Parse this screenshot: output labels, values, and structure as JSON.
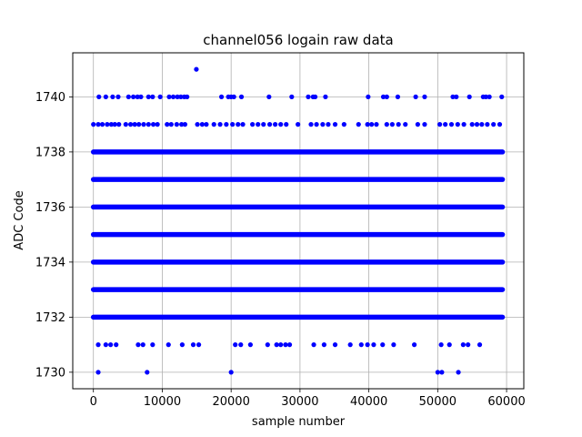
{
  "chart_data": {
    "type": "scatter",
    "title": "channel056 logain raw data",
    "xlabel": "sample number",
    "ylabel": "ADC Code",
    "xlim": [
      -3000,
      62500
    ],
    "ylim": [
      1729.4,
      1741.6
    ],
    "xticks": [
      0,
      10000,
      20000,
      30000,
      40000,
      50000,
      60000
    ],
    "yticks": [
      1730,
      1732,
      1734,
      1736,
      1738,
      1740
    ],
    "grid": true,
    "marker_color": "#0000ff",
    "series": [
      {
        "dense_levels": [
          {
            "y": 1738,
            "x_range": [
              0,
              59400
            ]
          },
          {
            "y": 1737,
            "x_range": [
              0,
              59400
            ]
          },
          {
            "y": 1736,
            "x_range": [
              0,
              59400
            ]
          },
          {
            "y": 1735,
            "x_range": [
              0,
              59400
            ]
          },
          {
            "y": 1734,
            "x_range": [
              0,
              59400
            ]
          },
          {
            "y": 1733,
            "x_range": [
              0,
              59400
            ]
          },
          {
            "y": 1732,
            "x_range": [
              0,
              59400
            ]
          }
        ],
        "points": [
          {
            "x": 14950,
            "y": 1741
          },
          {
            "x": 800,
            "y": 1740
          },
          {
            "x": 1800,
            "y": 1740
          },
          {
            "x": 2800,
            "y": 1740
          },
          {
            "x": 3600,
            "y": 1740
          },
          {
            "x": 5100,
            "y": 1740
          },
          {
            "x": 5800,
            "y": 1740
          },
          {
            "x": 6400,
            "y": 1740
          },
          {
            "x": 6900,
            "y": 1740
          },
          {
            "x": 8000,
            "y": 1740
          },
          {
            "x": 8600,
            "y": 1740
          },
          {
            "x": 9700,
            "y": 1740
          },
          {
            "x": 11000,
            "y": 1740
          },
          {
            "x": 11600,
            "y": 1740
          },
          {
            "x": 12200,
            "y": 1740
          },
          {
            "x": 12700,
            "y": 1740
          },
          {
            "x": 13200,
            "y": 1740
          },
          {
            "x": 13600,
            "y": 1740
          },
          {
            "x": 18600,
            "y": 1740
          },
          {
            "x": 19600,
            "y": 1740
          },
          {
            "x": 20000,
            "y": 1740
          },
          {
            "x": 20400,
            "y": 1740
          },
          {
            "x": 21500,
            "y": 1740
          },
          {
            "x": 25500,
            "y": 1740
          },
          {
            "x": 28800,
            "y": 1740
          },
          {
            "x": 31200,
            "y": 1740
          },
          {
            "x": 31900,
            "y": 1740
          },
          {
            "x": 32200,
            "y": 1740
          },
          {
            "x": 33700,
            "y": 1740
          },
          {
            "x": 39900,
            "y": 1740
          },
          {
            "x": 42100,
            "y": 1740
          },
          {
            "x": 42600,
            "y": 1740
          },
          {
            "x": 44200,
            "y": 1740
          },
          {
            "x": 46800,
            "y": 1740
          },
          {
            "x": 48100,
            "y": 1740
          },
          {
            "x": 52200,
            "y": 1740
          },
          {
            "x": 52700,
            "y": 1740
          },
          {
            "x": 54600,
            "y": 1740
          },
          {
            "x": 56600,
            "y": 1740
          },
          {
            "x": 57000,
            "y": 1740
          },
          {
            "x": 57500,
            "y": 1740
          },
          {
            "x": 59300,
            "y": 1740
          },
          {
            "x": 0,
            "y": 1739
          },
          {
            "x": 700,
            "y": 1739
          },
          {
            "x": 1300,
            "y": 1739
          },
          {
            "x": 2000,
            "y": 1739
          },
          {
            "x": 2600,
            "y": 1739
          },
          {
            "x": 3100,
            "y": 1739
          },
          {
            "x": 3700,
            "y": 1739
          },
          {
            "x": 4700,
            "y": 1739
          },
          {
            "x": 5400,
            "y": 1739
          },
          {
            "x": 6000,
            "y": 1739
          },
          {
            "x": 6600,
            "y": 1739
          },
          {
            "x": 7300,
            "y": 1739
          },
          {
            "x": 8000,
            "y": 1739
          },
          {
            "x": 8700,
            "y": 1739
          },
          {
            "x": 9300,
            "y": 1739
          },
          {
            "x": 10700,
            "y": 1739
          },
          {
            "x": 11300,
            "y": 1739
          },
          {
            "x": 12100,
            "y": 1739
          },
          {
            "x": 12800,
            "y": 1739
          },
          {
            "x": 13300,
            "y": 1739
          },
          {
            "x": 15100,
            "y": 1739
          },
          {
            "x": 15800,
            "y": 1739
          },
          {
            "x": 16400,
            "y": 1739
          },
          {
            "x": 17500,
            "y": 1739
          },
          {
            "x": 18400,
            "y": 1739
          },
          {
            "x": 19300,
            "y": 1739
          },
          {
            "x": 20200,
            "y": 1739
          },
          {
            "x": 21000,
            "y": 1739
          },
          {
            "x": 21700,
            "y": 1739
          },
          {
            "x": 23100,
            "y": 1739
          },
          {
            "x": 23900,
            "y": 1739
          },
          {
            "x": 24700,
            "y": 1739
          },
          {
            "x": 25600,
            "y": 1739
          },
          {
            "x": 26400,
            "y": 1739
          },
          {
            "x": 27200,
            "y": 1739
          },
          {
            "x": 28000,
            "y": 1739
          },
          {
            "x": 29700,
            "y": 1739
          },
          {
            "x": 31600,
            "y": 1739
          },
          {
            "x": 32400,
            "y": 1739
          },
          {
            "x": 33300,
            "y": 1739
          },
          {
            "x": 34100,
            "y": 1739
          },
          {
            "x": 35100,
            "y": 1739
          },
          {
            "x": 36400,
            "y": 1739
          },
          {
            "x": 38500,
            "y": 1739
          },
          {
            "x": 39800,
            "y": 1739
          },
          {
            "x": 40400,
            "y": 1739
          },
          {
            "x": 41100,
            "y": 1739
          },
          {
            "x": 42600,
            "y": 1739
          },
          {
            "x": 43400,
            "y": 1739
          },
          {
            "x": 44300,
            "y": 1739
          },
          {
            "x": 45300,
            "y": 1739
          },
          {
            "x": 47100,
            "y": 1739
          },
          {
            "x": 48100,
            "y": 1739
          },
          {
            "x": 50300,
            "y": 1739
          },
          {
            "x": 51100,
            "y": 1739
          },
          {
            "x": 52000,
            "y": 1739
          },
          {
            "x": 52900,
            "y": 1739
          },
          {
            "x": 53800,
            "y": 1739
          },
          {
            "x": 55000,
            "y": 1739
          },
          {
            "x": 55700,
            "y": 1739
          },
          {
            "x": 56400,
            "y": 1739
          },
          {
            "x": 57200,
            "y": 1739
          },
          {
            "x": 58100,
            "y": 1739
          },
          {
            "x": 59000,
            "y": 1739
          },
          {
            "x": 700,
            "y": 1731
          },
          {
            "x": 1800,
            "y": 1731
          },
          {
            "x": 2500,
            "y": 1731
          },
          {
            "x": 3300,
            "y": 1731
          },
          {
            "x": 6500,
            "y": 1731
          },
          {
            "x": 7200,
            "y": 1731
          },
          {
            "x": 8600,
            "y": 1731
          },
          {
            "x": 10900,
            "y": 1731
          },
          {
            "x": 12900,
            "y": 1731
          },
          {
            "x": 14500,
            "y": 1731
          },
          {
            "x": 15300,
            "y": 1731
          },
          {
            "x": 20600,
            "y": 1731
          },
          {
            "x": 21400,
            "y": 1731
          },
          {
            "x": 22800,
            "y": 1731
          },
          {
            "x": 25300,
            "y": 1731
          },
          {
            "x": 26600,
            "y": 1731
          },
          {
            "x": 27200,
            "y": 1731
          },
          {
            "x": 27900,
            "y": 1731
          },
          {
            "x": 28500,
            "y": 1731
          },
          {
            "x": 32000,
            "y": 1731
          },
          {
            "x": 33500,
            "y": 1731
          },
          {
            "x": 35100,
            "y": 1731
          },
          {
            "x": 37300,
            "y": 1731
          },
          {
            "x": 38900,
            "y": 1731
          },
          {
            "x": 39800,
            "y": 1731
          },
          {
            "x": 40700,
            "y": 1731
          },
          {
            "x": 42000,
            "y": 1731
          },
          {
            "x": 43600,
            "y": 1731
          },
          {
            "x": 46600,
            "y": 1731
          },
          {
            "x": 50500,
            "y": 1731
          },
          {
            "x": 51700,
            "y": 1731
          },
          {
            "x": 53700,
            "y": 1731
          },
          {
            "x": 54400,
            "y": 1731
          },
          {
            "x": 56100,
            "y": 1731
          },
          {
            "x": 700,
            "y": 1730
          },
          {
            "x": 7800,
            "y": 1730
          },
          {
            "x": 20000,
            "y": 1730
          },
          {
            "x": 50000,
            "y": 1730
          },
          {
            "x": 50600,
            "y": 1730
          },
          {
            "x": 53000,
            "y": 1730
          }
        ]
      }
    ]
  }
}
